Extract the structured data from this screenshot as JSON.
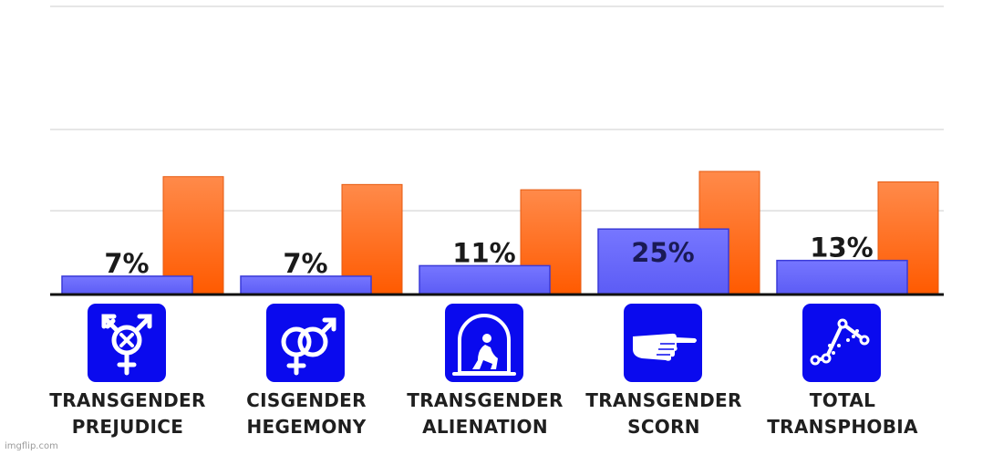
{
  "chart_data": {
    "type": "bar",
    "categories": [
      [
        "TRANSGENDER",
        "PREJUDICE"
      ],
      [
        "CISGENDER",
        "HEGEMONY"
      ],
      [
        "TRANSGENDER",
        "ALIENATION"
      ],
      [
        "TRANSGENDER",
        "SCORN"
      ],
      [
        "TOTAL",
        "TRANSPHOBIA"
      ]
    ],
    "series": [
      {
        "values": [
          7,
          7,
          11,
          25,
          13
        ],
        "data_labels": [
          "7%",
          "7%",
          "11%",
          "25%",
          "13%"
        ],
        "color": "#6b6bff"
      },
      {
        "values": [
          45,
          42,
          40,
          47,
          43
        ],
        "color": "#ff6a1a"
      }
    ],
    "ylim": [
      0,
      110
    ],
    "grid": true,
    "icons": [
      "transgender-symbol-icon",
      "male-female-symbol-icon",
      "isolated-figure-icon",
      "pointing-hand-icon",
      "scatter-trend-icon"
    ]
  },
  "watermark": "imgflip.com"
}
